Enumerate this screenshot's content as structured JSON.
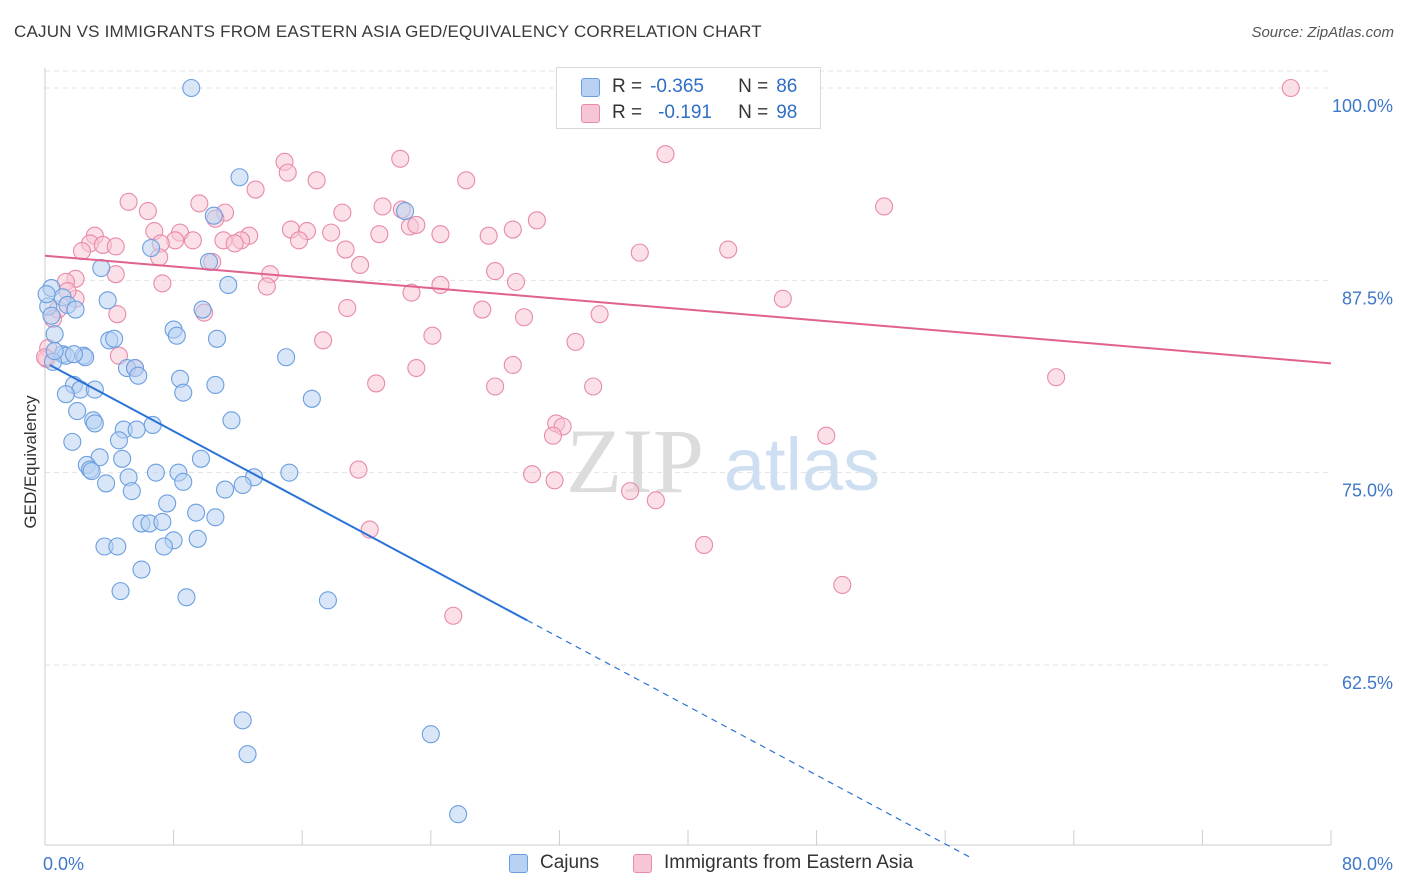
{
  "title": "CAJUN VS IMMIGRANTS FROM EASTERN ASIA GED/EQUIVALENCY CORRELATION CHART",
  "source": "Source: ZipAtlas.com",
  "watermark": {
    "zip": "ZIP",
    "atlas": "atlas"
  },
  "colors": {
    "blue_fill": "#b8d1f3",
    "blue_stroke": "#6c9fe0",
    "blue_line": "#2a73d6",
    "pink_fill": "#f7c6d6",
    "pink_stroke": "#e98aa8",
    "pink_line": "#e0628c",
    "axis_text": "#3f78c9",
    "grid": "#e3e3e3"
  },
  "stats": {
    "row1": {
      "r_label": "R =",
      "r_value": "-0.365",
      "n_label": "N =",
      "n_value": "86"
    },
    "row2": {
      "r_label": "R =",
      "r_value": "-0.191",
      "n_label": "N =",
      "n_value": "98"
    }
  },
  "legend": {
    "cajuns": "Cajuns",
    "immigrants": "Immigrants from Eastern Asia"
  },
  "chart_data": {
    "type": "scatter",
    "xlabel": "",
    "ylabel": "GED/Equivalency",
    "xlim": [
      0,
      80
    ],
    "ylim": [
      50.8,
      101.3
    ],
    "x_tick_labels": [
      "0.0%",
      "80.0%"
    ],
    "y_ticks": [
      62.5,
      75.0,
      87.5,
      100.0
    ],
    "y_tick_labels": [
      "62.5%",
      "75.0%",
      "87.5%",
      "100.0%"
    ],
    "grid": "horizontal dashed",
    "legend_position": "bottom",
    "series": [
      {
        "name": "Cajuns",
        "trend": {
          "x0": 0.3,
          "y0": 82.0,
          "x1": 30.0,
          "y1": 65.4,
          "dash_to_x": 57.5
        },
        "points": [
          [
            9.1,
            100.0
          ],
          [
            12.1,
            94.2
          ],
          [
            22.4,
            92.0
          ],
          [
            10.5,
            91.7
          ],
          [
            6.6,
            89.6
          ],
          [
            10.2,
            88.7
          ],
          [
            3.5,
            88.3
          ],
          [
            11.4,
            87.2
          ],
          [
            0.4,
            87.0
          ],
          [
            1.1,
            86.4
          ],
          [
            3.9,
            86.2
          ],
          [
            1.4,
            85.9
          ],
          [
            0.2,
            85.8
          ],
          [
            1.9,
            85.6
          ],
          [
            0.4,
            85.2
          ],
          [
            9.8,
            85.6
          ],
          [
            0.6,
            84.0
          ],
          [
            8.0,
            84.3
          ],
          [
            8.2,
            83.9
          ],
          [
            10.7,
            83.7
          ],
          [
            4.0,
            83.6
          ],
          [
            4.3,
            83.7
          ],
          [
            1.1,
            82.7
          ],
          [
            1.3,
            82.6
          ],
          [
            2.4,
            82.6
          ],
          [
            2.5,
            82.5
          ],
          [
            15.0,
            82.5
          ],
          [
            0.5,
            82.2
          ],
          [
            5.1,
            81.8
          ],
          [
            5.6,
            81.8
          ],
          [
            5.8,
            81.3
          ],
          [
            8.4,
            81.1
          ],
          [
            1.8,
            80.7
          ],
          [
            10.6,
            80.7
          ],
          [
            2.2,
            80.4
          ],
          [
            3.1,
            80.4
          ],
          [
            1.3,
            80.1
          ],
          [
            8.6,
            80.2
          ],
          [
            16.6,
            79.8
          ],
          [
            2.0,
            79.0
          ],
          [
            3.0,
            78.4
          ],
          [
            11.6,
            78.4
          ],
          [
            3.1,
            78.2
          ],
          [
            6.7,
            78.1
          ],
          [
            4.9,
            77.8
          ],
          [
            5.7,
            77.8
          ],
          [
            1.7,
            77.0
          ],
          [
            4.6,
            77.1
          ],
          [
            3.4,
            76.0
          ],
          [
            4.8,
            75.9
          ],
          [
            9.7,
            75.9
          ],
          [
            2.6,
            75.5
          ],
          [
            2.8,
            75.2
          ],
          [
            2.9,
            75.1
          ],
          [
            6.9,
            75.0
          ],
          [
            8.3,
            75.0
          ],
          [
            15.2,
            75.0
          ],
          [
            5.2,
            74.7
          ],
          [
            13.0,
            74.7
          ],
          [
            3.8,
            74.3
          ],
          [
            8.6,
            74.4
          ],
          [
            12.3,
            74.2
          ],
          [
            5.4,
            73.8
          ],
          [
            11.2,
            73.9
          ],
          [
            7.6,
            73.0
          ],
          [
            9.4,
            72.4
          ],
          [
            10.6,
            72.1
          ],
          [
            6.0,
            71.7
          ],
          [
            6.5,
            71.7
          ],
          [
            7.3,
            71.8
          ],
          [
            8.0,
            70.6
          ],
          [
            9.5,
            70.7
          ],
          [
            3.7,
            70.2
          ],
          [
            4.5,
            70.2
          ],
          [
            7.4,
            70.2
          ],
          [
            6.0,
            68.7
          ],
          [
            8.8,
            66.9
          ],
          [
            4.7,
            67.3
          ],
          [
            17.6,
            66.7
          ],
          [
            12.3,
            58.9
          ],
          [
            24.0,
            58.0
          ],
          [
            12.6,
            56.7
          ],
          [
            25.7,
            52.8
          ],
          [
            0.1,
            86.6
          ],
          [
            0.6,
            82.9
          ],
          [
            1.8,
            82.7
          ]
        ]
      },
      {
        "name": "Immigrants from Eastern Asia",
        "trend": {
          "x0": 0.0,
          "y0": 89.1,
          "x1": 80.0,
          "y1": 82.1
        },
        "points": [
          [
            38.0,
            100.0
          ],
          [
            42.9,
            100.0
          ],
          [
            77.5,
            100.0
          ],
          [
            38.6,
            95.7
          ],
          [
            22.1,
            95.4
          ],
          [
            14.9,
            95.2
          ],
          [
            15.1,
            94.5
          ],
          [
            16.9,
            94.0
          ],
          [
            26.2,
            94.0
          ],
          [
            13.1,
            93.4
          ],
          [
            5.2,
            92.6
          ],
          [
            9.6,
            92.5
          ],
          [
            21.0,
            92.3
          ],
          [
            22.2,
            92.1
          ],
          [
            52.2,
            92.3
          ],
          [
            6.4,
            92.0
          ],
          [
            11.2,
            91.9
          ],
          [
            10.6,
            91.5
          ],
          [
            18.5,
            91.9
          ],
          [
            30.6,
            91.4
          ],
          [
            22.7,
            91.0
          ],
          [
            23.1,
            91.1
          ],
          [
            29.1,
            90.8
          ],
          [
            15.3,
            90.8
          ],
          [
            16.3,
            90.7
          ],
          [
            17.8,
            90.6
          ],
          [
            6.8,
            90.7
          ],
          [
            8.4,
            90.6
          ],
          [
            12.7,
            90.4
          ],
          [
            20.8,
            90.5
          ],
          [
            3.1,
            90.4
          ],
          [
            8.1,
            90.1
          ],
          [
            12.2,
            90.1
          ],
          [
            24.6,
            90.5
          ],
          [
            27.6,
            90.4
          ],
          [
            15.8,
            90.1
          ],
          [
            9.2,
            90.1
          ],
          [
            11.1,
            90.1
          ],
          [
            2.8,
            89.9
          ],
          [
            3.6,
            89.8
          ],
          [
            4.4,
            89.7
          ],
          [
            7.2,
            89.9
          ],
          [
            11.8,
            89.9
          ],
          [
            2.3,
            89.4
          ],
          [
            18.7,
            89.5
          ],
          [
            37.0,
            89.3
          ],
          [
            42.5,
            89.5
          ],
          [
            7.1,
            89.0
          ],
          [
            19.6,
            88.5
          ],
          [
            10.4,
            88.7
          ],
          [
            28.0,
            88.1
          ],
          [
            4.4,
            87.9
          ],
          [
            1.9,
            87.6
          ],
          [
            14.0,
            87.9
          ],
          [
            1.3,
            87.4
          ],
          [
            7.3,
            87.3
          ],
          [
            24.6,
            87.2
          ],
          [
            29.3,
            87.4
          ],
          [
            13.8,
            87.1
          ],
          [
            22.8,
            86.7
          ],
          [
            1.9,
            86.3
          ],
          [
            45.9,
            86.3
          ],
          [
            0.8,
            85.6
          ],
          [
            18.8,
            85.7
          ],
          [
            27.2,
            85.6
          ],
          [
            34.5,
            85.3
          ],
          [
            4.5,
            85.3
          ],
          [
            9.9,
            85.4
          ],
          [
            29.8,
            85.1
          ],
          [
            0.5,
            85.0
          ],
          [
            24.1,
            83.9
          ],
          [
            17.3,
            83.6
          ],
          [
            33.0,
            83.5
          ],
          [
            0.2,
            83.1
          ],
          [
            4.6,
            82.6
          ],
          [
            29.1,
            82.0
          ],
          [
            5.6,
            81.8
          ],
          [
            23.1,
            81.8
          ],
          [
            0.1,
            82.4
          ],
          [
            20.6,
            80.8
          ],
          [
            28.0,
            80.6
          ],
          [
            34.1,
            80.6
          ],
          [
            62.9,
            81.2
          ],
          [
            31.8,
            78.2
          ],
          [
            32.2,
            78.0
          ],
          [
            31.6,
            77.4
          ],
          [
            48.6,
            77.4
          ],
          [
            19.5,
            75.2
          ],
          [
            30.3,
            74.9
          ],
          [
            31.7,
            74.5
          ],
          [
            36.4,
            73.8
          ],
          [
            38.0,
            73.2
          ],
          [
            20.2,
            71.3
          ],
          [
            41.0,
            70.3
          ],
          [
            49.6,
            67.7
          ],
          [
            25.4,
            65.7
          ],
          [
            0.0,
            82.5
          ],
          [
            1.4,
            86.8
          ]
        ]
      }
    ]
  }
}
